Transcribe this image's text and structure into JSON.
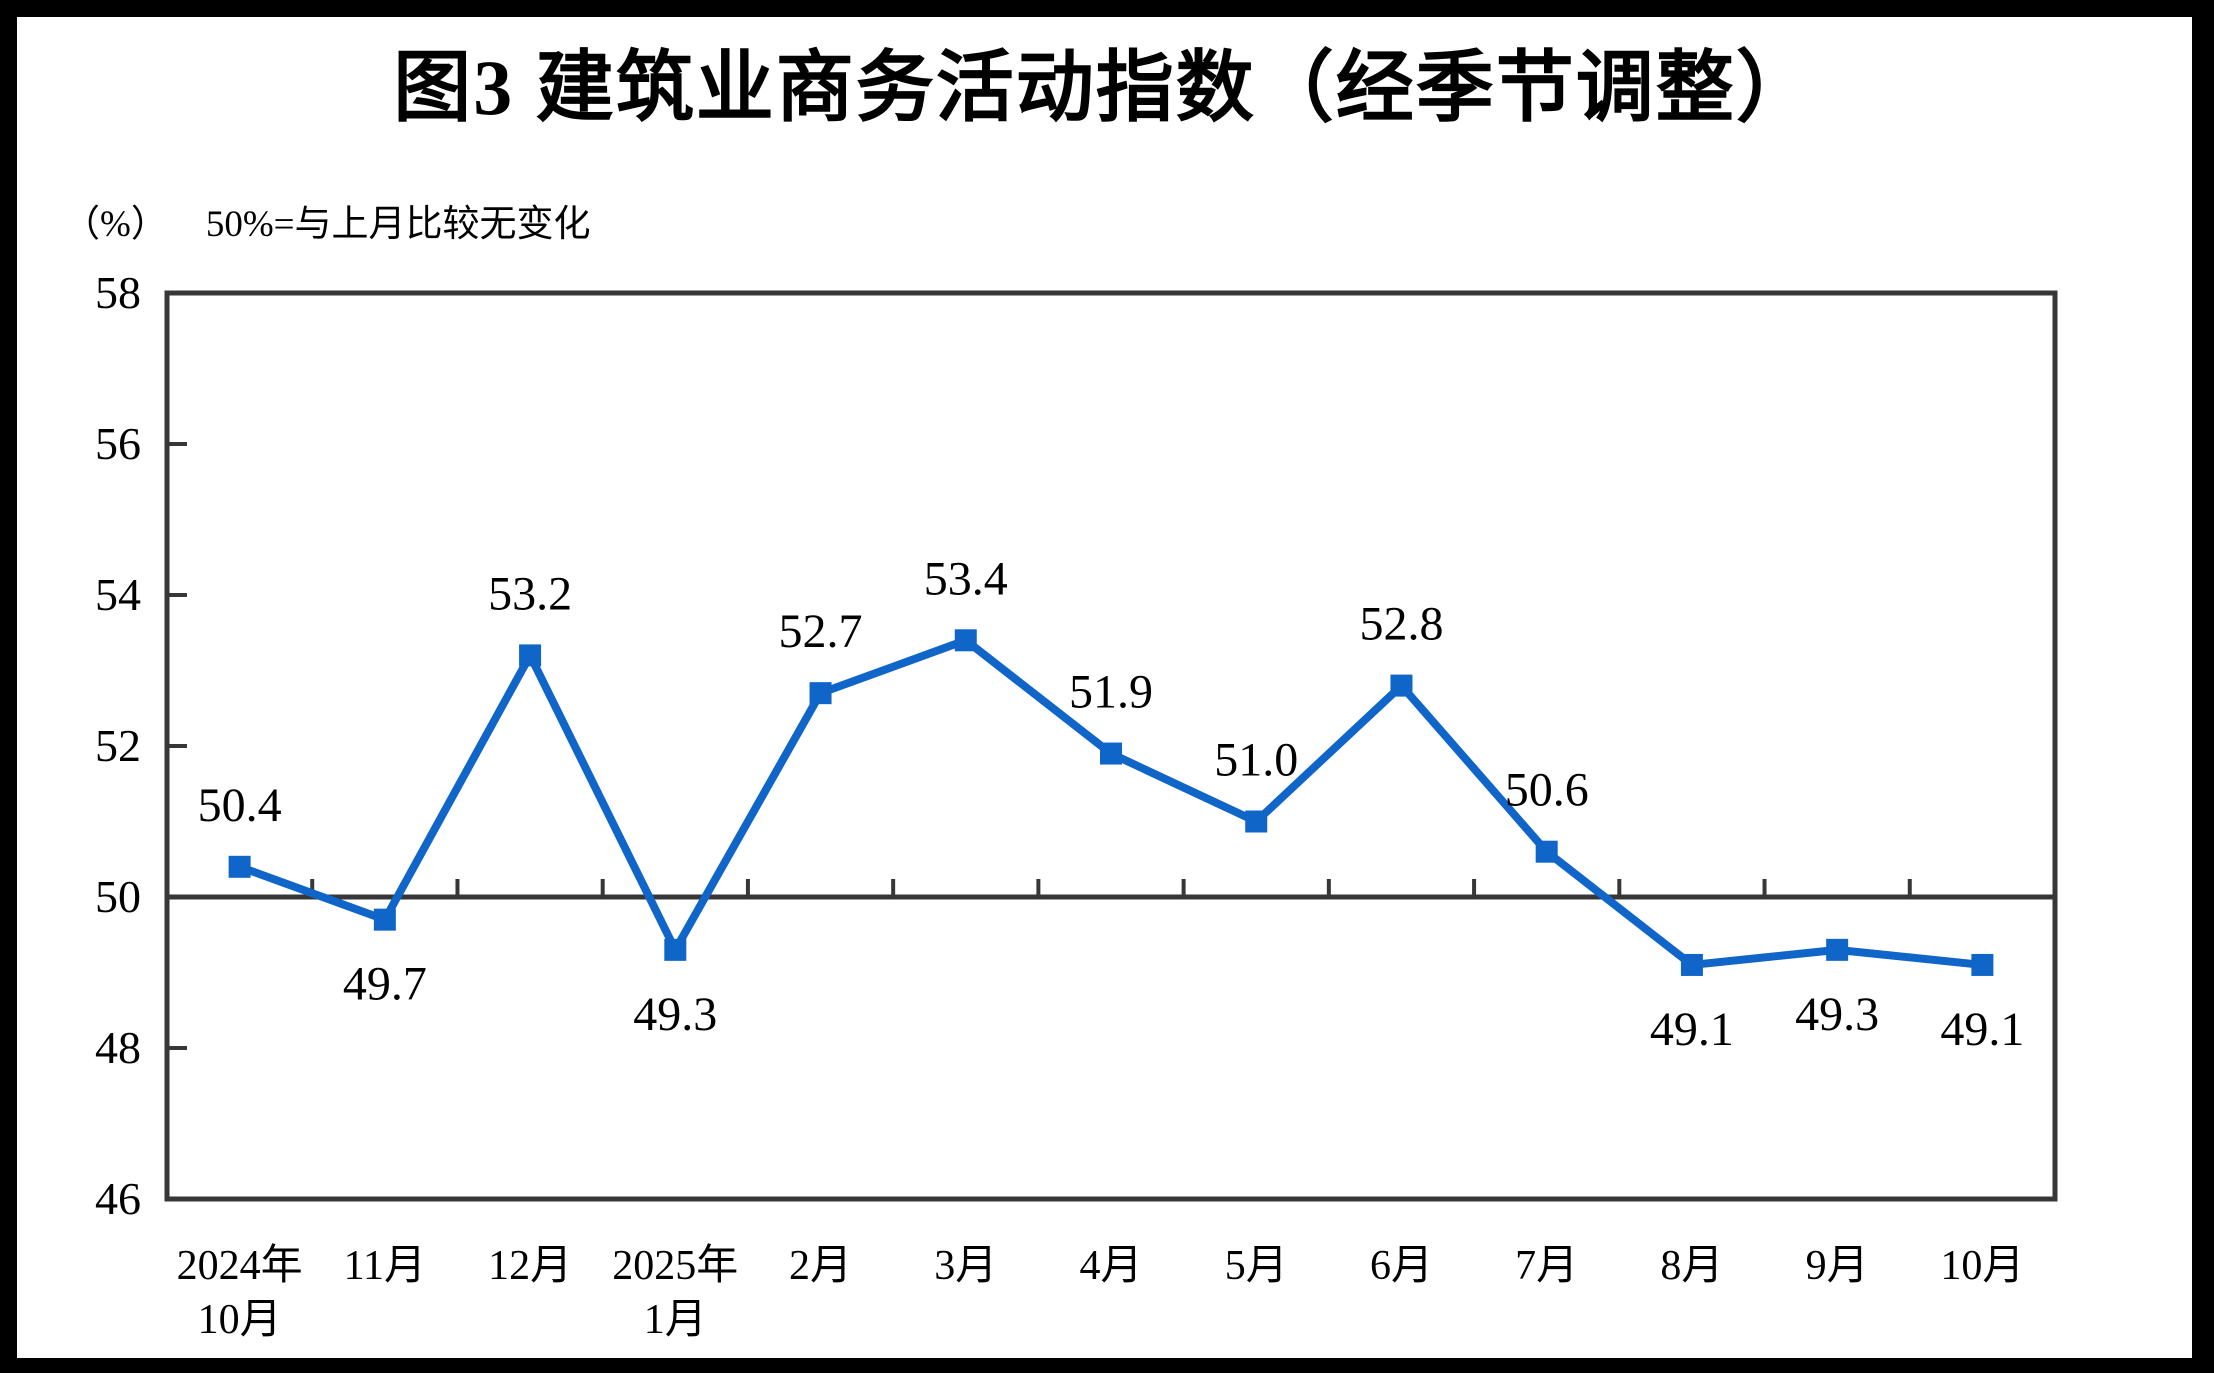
{
  "page": {
    "title": "图3  建筑业商务活动指数（经季节调整）",
    "unit_label": "（%）",
    "reference_note": "50%=与上月比较无变化"
  },
  "chart_data": {
    "type": "line",
    "title": "图3  建筑业商务活动指数（经季节调整）",
    "ylabel": "（%）",
    "xlabel": "",
    "annotation": "50%=与上月比较无变化",
    "categories": [
      "2024年\n10月",
      "11月",
      "12月",
      "2025年\n1月",
      "2月",
      "3月",
      "4月",
      "5月",
      "6月",
      "7月",
      "8月",
      "9月",
      "10月"
    ],
    "values": [
      50.4,
      49.7,
      53.2,
      49.3,
      52.7,
      53.4,
      51.9,
      51.0,
      52.8,
      50.6,
      49.1,
      49.3,
      49.1
    ],
    "point_labels": [
      "50.4",
      "49.7",
      "53.2",
      "49.3",
      "52.7",
      "53.4",
      "51.9",
      "51.0",
      "52.8",
      "50.6",
      "49.1",
      "49.3",
      "49.1"
    ],
    "label_position": [
      "above",
      "below",
      "above",
      "below",
      "above",
      "above",
      "above",
      "above",
      "above",
      "above",
      "below",
      "below",
      "below"
    ],
    "ylim": [
      46,
      58
    ],
    "yticks": [
      46,
      48,
      50,
      52,
      54,
      56,
      58
    ],
    "baseline_value": 50,
    "grid": false,
    "legend_position": "none",
    "line_color": "#1065C8",
    "axis_color": "#373737",
    "marker": "square"
  }
}
